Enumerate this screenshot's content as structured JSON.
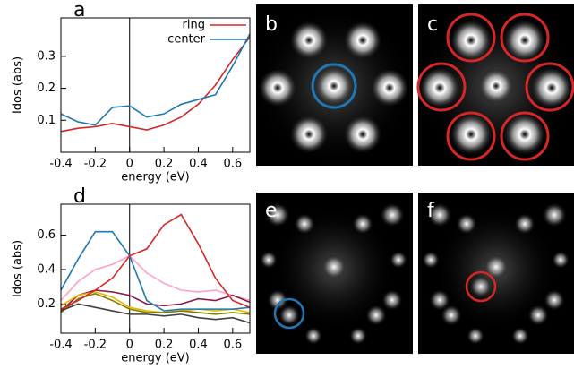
{
  "chart_data": [
    {
      "type": "line",
      "title": "a",
      "xlabel": "energy (eV)",
      "ylabel": "Idos (abs)",
      "x": [
        -0.4,
        -0.3,
        -0.2,
        -0.1,
        0,
        0.1,
        0.2,
        0.3,
        0.4,
        0.5,
        0.6,
        0.7
      ],
      "xlim": [
        -0.4,
        0.7
      ],
      "xticks": [
        -0.4,
        -0.2,
        0,
        0.2,
        0.4,
        0.6
      ],
      "ylim": [
        0,
        0.42
      ],
      "yticks": [
        0.1,
        0.2,
        0.3
      ],
      "zero_line": true,
      "legend": "top-right",
      "series": [
        {
          "name": "ring",
          "color": "#d62728",
          "values": [
            0.065,
            0.075,
            0.08,
            0.09,
            0.08,
            0.07,
            0.085,
            0.11,
            0.15,
            0.21,
            0.29,
            0.36
          ]
        },
        {
          "name": "center",
          "color": "#1f77b4",
          "values": [
            0.12,
            0.095,
            0.085,
            0.14,
            0.145,
            0.11,
            0.12,
            0.15,
            0.165,
            0.18,
            0.27,
            0.37
          ]
        }
      ]
    },
    {
      "type": "line",
      "title": "d",
      "xlabel": "energy (eV)",
      "ylabel": "Idos (abs)",
      "x": [
        -0.4,
        -0.3,
        -0.2,
        -0.1,
        0,
        0.1,
        0.2,
        0.3,
        0.4,
        0.5,
        0.6,
        0.7
      ],
      "xlim": [
        -0.4,
        0.7
      ],
      "xticks": [
        -0.4,
        -0.2,
        0,
        0.2,
        0.4,
        0.6
      ],
      "ylim": [
        0.03,
        0.78
      ],
      "yticks": [
        0.2,
        0.4,
        0.6
      ],
      "zero_line": true,
      "series": [
        {
          "color": "#ff9fc8",
          "values": [
            0.22,
            0.33,
            0.4,
            0.43,
            0.48,
            0.38,
            0.32,
            0.28,
            0.27,
            0.28,
            0.25,
            0.22
          ]
        },
        {
          "color": "#8b1a4a",
          "values": [
            0.16,
            0.25,
            0.28,
            0.27,
            0.25,
            0.2,
            0.19,
            0.2,
            0.23,
            0.22,
            0.25,
            0.21
          ]
        },
        {
          "color": "#e8b800",
          "values": [
            0.19,
            0.25,
            0.27,
            0.24,
            0.18,
            0.16,
            0.15,
            0.16,
            0.17,
            0.16,
            0.17,
            0.15
          ]
        },
        {
          "color": "#808000",
          "values": [
            0.15,
            0.23,
            0.26,
            0.22,
            0.17,
            0.15,
            0.15,
            0.16,
            0.15,
            0.14,
            0.15,
            0.14
          ]
        },
        {
          "color": "#404040",
          "values": [
            0.16,
            0.2,
            0.18,
            0.16,
            0.14,
            0.14,
            0.13,
            0.14,
            0.12,
            0.11,
            0.12,
            0.09
          ]
        },
        {
          "color": "#1f77b4",
          "values": [
            0.28,
            0.46,
            0.62,
            0.62,
            0.48,
            0.22,
            0.16,
            0.17,
            0.17,
            0.17,
            0.17,
            0.18
          ]
        },
        {
          "color": "#d62728",
          "values": [
            0.17,
            0.22,
            0.28,
            0.35,
            0.48,
            0.52,
            0.66,
            0.72,
            0.55,
            0.35,
            0.22,
            0.18
          ]
        }
      ]
    }
  ],
  "image_panels": [
    {
      "label": "b"
    },
    {
      "label": "c"
    },
    {
      "label": "e"
    },
    {
      "label": "f"
    }
  ]
}
